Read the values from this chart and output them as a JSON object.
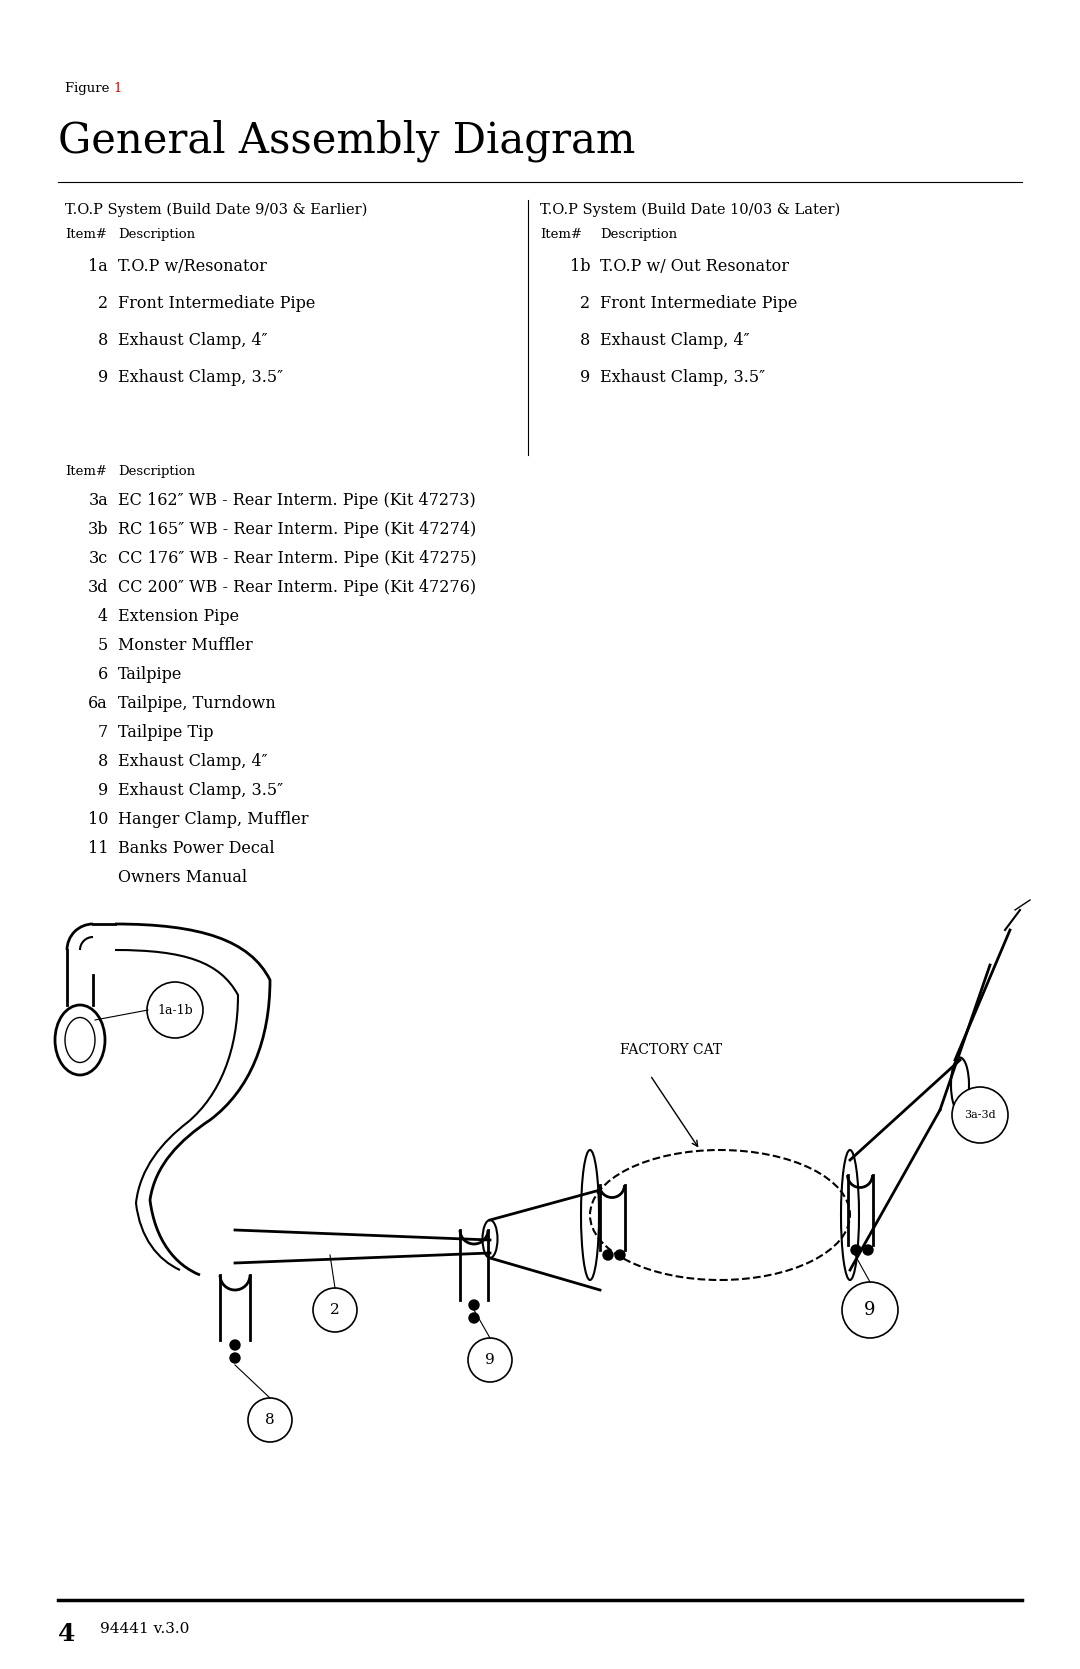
{
  "bg_color": "#ffffff",
  "figure_number_color": "#cc0000",
  "title": "General Assembly Diagram",
  "title_fontsize": 30,
  "footer_number": "4",
  "footer_text": "94441 v.3.0",
  "left_table_header": "T.O.P System (Build Date 9/03 & Earlier)",
  "right_table_header": "T.O.P System (Build Date 10/03 & Later)",
  "col_header_item": "Item#",
  "col_header_desc": "Description",
  "left_items": [
    [
      "1a",
      "T.O.P w/Resonator"
    ],
    [
      "2",
      "Front Intermediate Pipe"
    ],
    [
      "8",
      "Exhaust Clamp, 4″"
    ],
    [
      "9",
      "Exhaust Clamp, 3.5″"
    ]
  ],
  "right_items": [
    [
      "1b",
      "T.O.P w/ Out Resonator"
    ],
    [
      "2",
      "Front Intermediate Pipe"
    ],
    [
      "8",
      "Exhaust Clamp, 4″"
    ],
    [
      "9",
      "Exhaust Clamp, 3.5″"
    ]
  ],
  "bottom_items": [
    [
      "3a",
      "EC 162″ WB - Rear Interm. Pipe (Kit 47273)"
    ],
    [
      "3b",
      "RC 165″ WB - Rear Interm. Pipe (Kit 47274)"
    ],
    [
      "3c",
      "CC 176″ WB - Rear Interm. Pipe (Kit 47275)"
    ],
    [
      "3d",
      "CC 200″ WB - Rear Interm. Pipe (Kit 47276)"
    ],
    [
      "4",
      "Extension Pipe"
    ],
    [
      "5",
      "Monster Muffler"
    ],
    [
      "6",
      "Tailpipe"
    ],
    [
      "6a",
      "Tailpipe, Turndown"
    ],
    [
      "7",
      "Tailpipe Tip"
    ],
    [
      "8",
      "Exhaust Clamp, 4″"
    ],
    [
      "9",
      "Exhaust Clamp, 3.5″"
    ],
    [
      "10",
      "Hanger Clamp, Muffler"
    ],
    [
      "11",
      "Banks Power Decal"
    ],
    [
      "",
      "Owners Manual"
    ]
  ],
  "font_size_table_header": 10.5,
  "font_size_col_header": 9.5,
  "font_size_item": 11.5,
  "font_family": "DejaVu Serif"
}
